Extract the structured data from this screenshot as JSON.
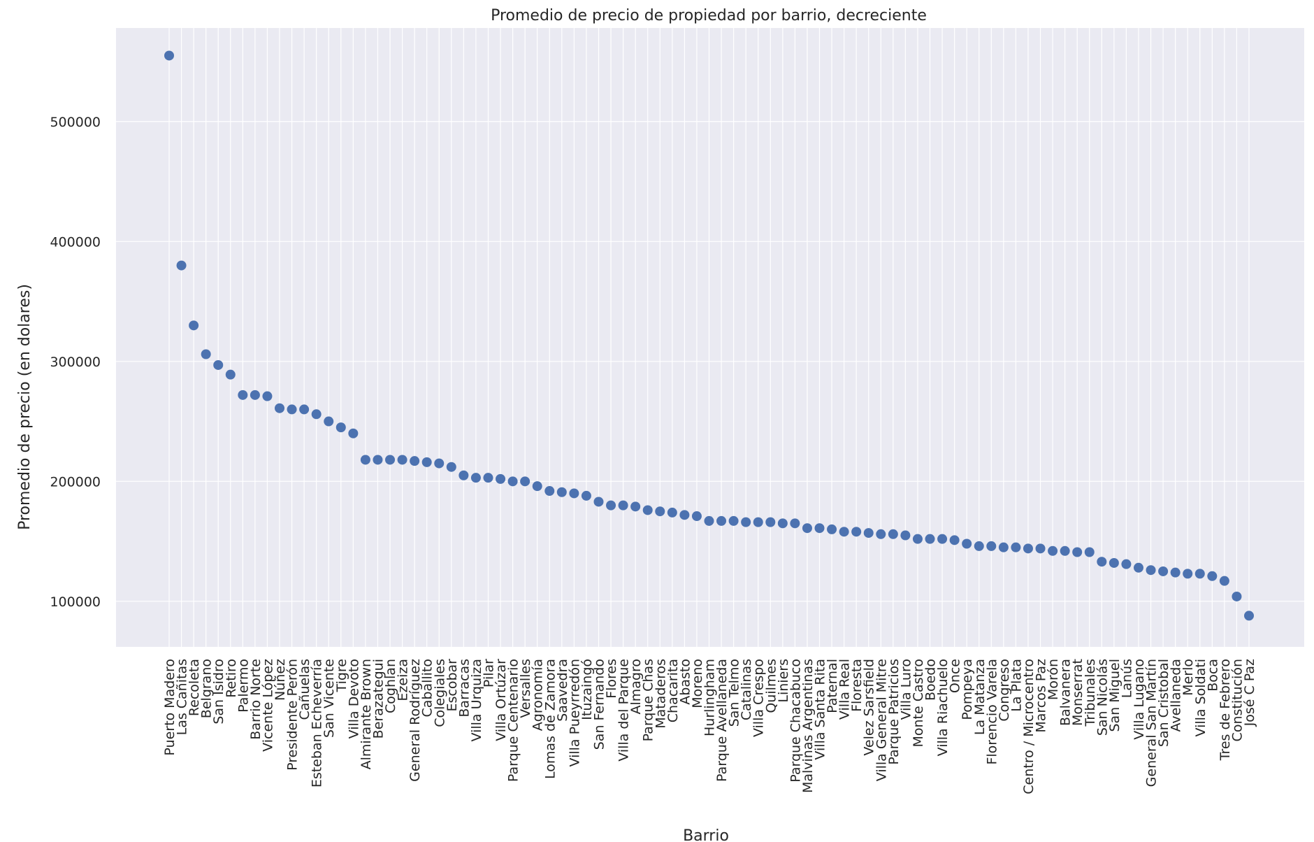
{
  "chart_data": {
    "type": "scatter",
    "title": "Promedio de precio de propiedad por barrio, decreciente",
    "xlabel": "Barrio",
    "ylabel": "Promedio de precio (en dolares)",
    "ylim": [
      62000,
      578000
    ],
    "yticks": [
      100000,
      200000,
      300000,
      400000,
      500000
    ],
    "grid": true,
    "background": "#eaeaf2",
    "point_color": "#4c72b0",
    "categories": [
      "Puerto Madero",
      "Las Cañitas",
      "Recoleta",
      "Belgrano",
      "San Isidro",
      "Retiro",
      "Palermo",
      "Barrio Norte",
      "Vicente López",
      "Núñez",
      "Presidente Perón",
      "Cañuelas",
      "Esteban Echeverría",
      "San Vicente",
      "Tigre",
      "Villa Devoto",
      "Almirante Brown",
      "Berazategui",
      "Coghlan",
      "Ezeiza",
      "General Rodríguez",
      "Caballito",
      "Colegiales",
      "Escobar",
      "Barracas",
      "Villa Urquiza",
      "Pilar",
      "Villa Ortúzar",
      "Parque Centenario",
      "Versalles",
      "Agronomía",
      "Lomas de Zamora",
      "Saavedra",
      "Villa Pueyrredón",
      "Ituzaingó",
      "San Fernando",
      "Flores",
      "Villa del Parque",
      "Almagro",
      "Parque Chas",
      "Mataderos",
      "Chacarita",
      "Abasto",
      "Moreno",
      "Hurlingham",
      "Parque Avellaneda",
      "San Telmo",
      "Catalinas",
      "Villa Crespo",
      "Quilmes",
      "Liniers",
      "Parque Chacabuco",
      "Malvinas Argentinas",
      "Villa Santa Rita",
      "Paternal",
      "Villa Real",
      "Floresta",
      "Velez Sarsfield",
      "Villa General Mitre",
      "Parque Patricios",
      "Villa Luro",
      "Monte Castro",
      "Boedo",
      "Villa Riachuelo",
      "Once",
      "Pompeya",
      "La Matanza",
      "Florencio Varela",
      "Congreso",
      "La Plata",
      "Centro / Microcentro",
      "Marcos Paz",
      "Morón",
      "Balvanera",
      "Monserrat",
      "Tribunales",
      "San Nicolás",
      "San Miguel",
      "Lanús",
      "Villa Lugano",
      "General San Martín",
      "San Cristobal",
      "Avellaneda",
      "Merlo",
      "Villa Soldati",
      "Boca",
      "Tres de Febrero",
      "Constitución",
      "José C Paz"
    ],
    "values": [
      555000,
      380000,
      330000,
      306000,
      297000,
      289000,
      272000,
      272000,
      271000,
      261000,
      260000,
      260000,
      256000,
      250000,
      245000,
      240000,
      218000,
      218000,
      218000,
      218000,
      217000,
      216000,
      215000,
      212000,
      205000,
      203000,
      203000,
      202000,
      200000,
      200000,
      196000,
      192000,
      191000,
      190000,
      188000,
      183000,
      180000,
      180000,
      179000,
      176000,
      175000,
      174000,
      172000,
      171000,
      167000,
      167000,
      167000,
      166000,
      166000,
      166000,
      165000,
      165000,
      161000,
      161000,
      160000,
      158000,
      158000,
      157000,
      156000,
      156000,
      155000,
      152000,
      152000,
      152000,
      151000,
      148000,
      146000,
      146000,
      145000,
      145000,
      144000,
      144000,
      142000,
      142000,
      141000,
      141000,
      133000,
      132000,
      131000,
      128000,
      126000,
      125000,
      124000,
      123000,
      123000,
      121000,
      117000,
      104000,
      88000
    ]
  }
}
